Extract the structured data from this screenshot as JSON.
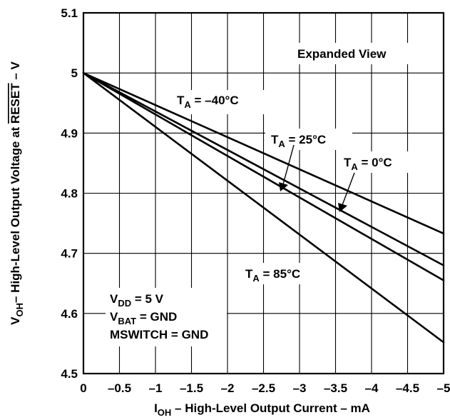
{
  "chart_data": {
    "type": "line",
    "xlim": [
      0,
      -5
    ],
    "ylim": [
      4.5,
      5.1
    ],
    "x_ticks": [
      0,
      -0.5,
      -1,
      -1.5,
      -2,
      -2.5,
      -3,
      -3.5,
      -4,
      -4.5,
      -5
    ],
    "x_tick_labels": [
      "0",
      "–0.5",
      "–1",
      "–1.5",
      "–2",
      "–2.5",
      "–3",
      "–3.5",
      "–4",
      "–4.5",
      "–5"
    ],
    "y_ticks": [
      4.5,
      4.6,
      4.7,
      4.8,
      4.9,
      5,
      5.1
    ],
    "y_tick_labels": [
      "4.5",
      "4.6",
      "4.7",
      "4.8",
      "4.9",
      "5",
      "5.1"
    ],
    "grid": true,
    "xlabel": {
      "main": "I",
      "sub": "OH",
      "rest": " – High-Level Output Current – mA"
    },
    "ylabel": {
      "main": "V",
      "sub": "OH",
      "mid": "– High-Level Output Voltage at ",
      "overline": "RESET",
      "rest": " – V"
    },
    "annotation": "Expanded View",
    "conditions": [
      {
        "main": "V",
        "sub": "DD",
        "rest": " = 5 V"
      },
      {
        "main": "V",
        "sub": "BAT",
        "rest": " = GND"
      },
      {
        "main": "MSWITCH = GND",
        "sub": "",
        "rest": ""
      }
    ],
    "series": [
      {
        "name": {
          "main": "T",
          "sub": "A",
          "rest": " = –40°C"
        },
        "x": [
          0,
          -5
        ],
        "y": [
          5.0,
          4.733
        ]
      },
      {
        "name": {
          "main": "T",
          "sub": "A",
          "rest": " = 0°C"
        },
        "x": [
          0,
          -5
        ],
        "y": [
          5.0,
          4.68
        ]
      },
      {
        "name": {
          "main": "T",
          "sub": "A",
          "rest": " = 25°C"
        },
        "x": [
          0,
          -5
        ],
        "y": [
          5.0,
          4.655
        ]
      },
      {
        "name": {
          "main": "T",
          "sub": "A",
          "rest": " = 85°C"
        },
        "x": [
          0,
          -5
        ],
        "y": [
          5.0,
          4.552
        ]
      }
    ]
  }
}
